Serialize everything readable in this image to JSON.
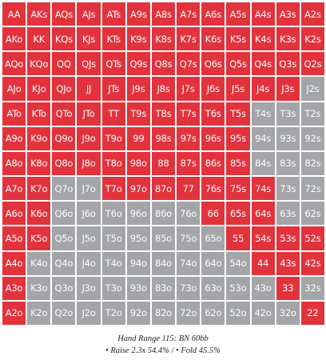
{
  "colors": {
    "raise": "#e2333d",
    "fold": "#a3a5a8",
    "label": "#ffffff"
  },
  "caption": {
    "title": "Hand Range 115: BN 60bb",
    "subtitle": "• Raise 2.3x 54.4% / • Fold 45.5%"
  },
  "grid": {
    "rows": [
      {
        "cells": [
          {
            "label": "AA",
            "action": "raise"
          },
          {
            "label": "AKs",
            "action": "raise"
          },
          {
            "label": "AQs",
            "action": "raise"
          },
          {
            "label": "AJs",
            "action": "raise"
          },
          {
            "label": "ATs",
            "action": "raise"
          },
          {
            "label": "A9s",
            "action": "raise"
          },
          {
            "label": "A8s",
            "action": "raise"
          },
          {
            "label": "A7s",
            "action": "raise"
          },
          {
            "label": "A6s",
            "action": "raise"
          },
          {
            "label": "A5s",
            "action": "raise"
          },
          {
            "label": "A4s",
            "action": "raise"
          },
          {
            "label": "A3s",
            "action": "raise"
          },
          {
            "label": "A2s",
            "action": "raise"
          }
        ]
      },
      {
        "cells": [
          {
            "label": "AKo",
            "action": "raise"
          },
          {
            "label": "KK",
            "action": "raise"
          },
          {
            "label": "KQs",
            "action": "raise"
          },
          {
            "label": "KJs",
            "action": "raise"
          },
          {
            "label": "KTs",
            "action": "raise"
          },
          {
            "label": "K9s",
            "action": "raise"
          },
          {
            "label": "K8s",
            "action": "raise"
          },
          {
            "label": "K7s",
            "action": "raise"
          },
          {
            "label": "K6s",
            "action": "raise"
          },
          {
            "label": "K5s",
            "action": "raise"
          },
          {
            "label": "K4s",
            "action": "raise"
          },
          {
            "label": "K3s",
            "action": "raise"
          },
          {
            "label": "K2s",
            "action": "raise"
          }
        ]
      },
      {
        "cells": [
          {
            "label": "AQo",
            "action": "raise"
          },
          {
            "label": "KQo",
            "action": "raise"
          },
          {
            "label": "QQ",
            "action": "raise"
          },
          {
            "label": "QJs",
            "action": "raise"
          },
          {
            "label": "QTs",
            "action": "raise"
          },
          {
            "label": "Q9s",
            "action": "raise"
          },
          {
            "label": "Q8s",
            "action": "raise"
          },
          {
            "label": "Q7s",
            "action": "raise"
          },
          {
            "label": "Q6s",
            "action": "raise"
          },
          {
            "label": "Q5s",
            "action": "raise"
          },
          {
            "label": "Q4s",
            "action": "raise"
          },
          {
            "label": "Q3s",
            "action": "raise"
          },
          {
            "label": "Q2s",
            "action": "raise"
          }
        ]
      },
      {
        "cells": [
          {
            "label": "AJo",
            "action": "raise"
          },
          {
            "label": "KJo",
            "action": "raise"
          },
          {
            "label": "QJo",
            "action": "raise"
          },
          {
            "label": "JJ",
            "action": "raise"
          },
          {
            "label": "JTs",
            "action": "raise"
          },
          {
            "label": "J9s",
            "action": "raise"
          },
          {
            "label": "J8s",
            "action": "raise"
          },
          {
            "label": "J7s",
            "action": "raise"
          },
          {
            "label": "J6s",
            "action": "raise"
          },
          {
            "label": "J5s",
            "action": "raise"
          },
          {
            "label": "J4s",
            "action": "raise"
          },
          {
            "label": "J3s",
            "action": "raise"
          },
          {
            "label": "J2s",
            "action": "fold"
          }
        ]
      },
      {
        "cells": [
          {
            "label": "ATo",
            "action": "raise"
          },
          {
            "label": "KTo",
            "action": "raise"
          },
          {
            "label": "QTo",
            "action": "raise"
          },
          {
            "label": "JTo",
            "action": "raise"
          },
          {
            "label": "TT",
            "action": "raise"
          },
          {
            "label": "T9s",
            "action": "raise"
          },
          {
            "label": "T8s",
            "action": "raise"
          },
          {
            "label": "T7s",
            "action": "raise"
          },
          {
            "label": "T6s",
            "action": "raise"
          },
          {
            "label": "T5s",
            "action": "raise"
          },
          {
            "label": "T4s",
            "action": "fold"
          },
          {
            "label": "T3s",
            "action": "fold"
          },
          {
            "label": "T2s",
            "action": "fold"
          }
        ]
      },
      {
        "cells": [
          {
            "label": "A9o",
            "action": "raise"
          },
          {
            "label": "K9o",
            "action": "raise"
          },
          {
            "label": "Q9o",
            "action": "raise"
          },
          {
            "label": "J9o",
            "action": "raise"
          },
          {
            "label": "T9o",
            "action": "raise"
          },
          {
            "label": "99",
            "action": "raise"
          },
          {
            "label": "98s",
            "action": "raise"
          },
          {
            "label": "97s",
            "action": "raise"
          },
          {
            "label": "96s",
            "action": "raise"
          },
          {
            "label": "95s",
            "action": "raise"
          },
          {
            "label": "94s",
            "action": "fold"
          },
          {
            "label": "93s",
            "action": "fold"
          },
          {
            "label": "92s",
            "action": "fold"
          }
        ]
      },
      {
        "cells": [
          {
            "label": "A8o",
            "action": "raise"
          },
          {
            "label": "K8o",
            "action": "raise"
          },
          {
            "label": "Q8o",
            "action": "raise"
          },
          {
            "label": "J8o",
            "action": "raise"
          },
          {
            "label": "T8o",
            "action": "raise"
          },
          {
            "label": "98o",
            "action": "raise"
          },
          {
            "label": "88",
            "action": "raise"
          },
          {
            "label": "87s",
            "action": "raise"
          },
          {
            "label": "86s",
            "action": "raise"
          },
          {
            "label": "85s",
            "action": "raise"
          },
          {
            "label": "84s",
            "action": "fold"
          },
          {
            "label": "83s",
            "action": "fold"
          },
          {
            "label": "82s",
            "action": "fold"
          }
        ]
      },
      {
        "cells": [
          {
            "label": "A7o",
            "action": "raise"
          },
          {
            "label": "K7o",
            "action": "raise"
          },
          {
            "label": "Q7o",
            "action": "fold"
          },
          {
            "label": "J7o",
            "action": "fold"
          },
          {
            "label": "T7o",
            "action": "raise"
          },
          {
            "label": "97o",
            "action": "raise"
          },
          {
            "label": "87o",
            "action": "raise"
          },
          {
            "label": "77",
            "action": "raise"
          },
          {
            "label": "76s",
            "action": "raise"
          },
          {
            "label": "75s",
            "action": "raise"
          },
          {
            "label": "74s",
            "action": "raise"
          },
          {
            "label": "73s",
            "action": "fold"
          },
          {
            "label": "72s",
            "action": "fold"
          }
        ]
      },
      {
        "cells": [
          {
            "label": "A6o",
            "action": "raise"
          },
          {
            "label": "K6o",
            "action": "raise"
          },
          {
            "label": "Q6o",
            "action": "fold"
          },
          {
            "label": "J6o",
            "action": "fold"
          },
          {
            "label": "T6o",
            "action": "fold"
          },
          {
            "label": "96o",
            "action": "fold"
          },
          {
            "label": "86o",
            "action": "fold"
          },
          {
            "label": "76o",
            "action": "fold"
          },
          {
            "label": "66",
            "action": "raise"
          },
          {
            "label": "65s",
            "action": "raise"
          },
          {
            "label": "64s",
            "action": "raise"
          },
          {
            "label": "63s",
            "action": "fold"
          },
          {
            "label": "62s",
            "action": "fold"
          }
        ]
      },
      {
        "cells": [
          {
            "label": "A5o",
            "action": "raise"
          },
          {
            "label": "K5o",
            "action": "raise"
          },
          {
            "label": "Q5o",
            "action": "fold"
          },
          {
            "label": "J5o",
            "action": "fold"
          },
          {
            "label": "T5o",
            "action": "fold"
          },
          {
            "label": "95o",
            "action": "fold"
          },
          {
            "label": "85o",
            "action": "fold"
          },
          {
            "label": "75o",
            "action": "fold"
          },
          {
            "label": "65o",
            "action": "fold"
          },
          {
            "label": "55",
            "action": "raise"
          },
          {
            "label": "54s",
            "action": "raise"
          },
          {
            "label": "53s",
            "action": "raise"
          },
          {
            "label": "52s",
            "action": "raise"
          }
        ]
      },
      {
        "cells": [
          {
            "label": "A4o",
            "action": "raise"
          },
          {
            "label": "K4o",
            "action": "fold"
          },
          {
            "label": "Q4o",
            "action": "fold"
          },
          {
            "label": "J4o",
            "action": "fold"
          },
          {
            "label": "T4o",
            "action": "fold"
          },
          {
            "label": "94o",
            "action": "fold"
          },
          {
            "label": "84o",
            "action": "fold"
          },
          {
            "label": "74o",
            "action": "fold"
          },
          {
            "label": "64o",
            "action": "fold"
          },
          {
            "label": "54o",
            "action": "fold"
          },
          {
            "label": "44",
            "action": "raise"
          },
          {
            "label": "43s",
            "action": "raise"
          },
          {
            "label": "42s",
            "action": "raise"
          }
        ]
      },
      {
        "cells": [
          {
            "label": "A3o",
            "action": "raise"
          },
          {
            "label": "K3o",
            "action": "fold"
          },
          {
            "label": "Q3o",
            "action": "fold"
          },
          {
            "label": "J3o",
            "action": "fold"
          },
          {
            "label": "T3o",
            "action": "fold"
          },
          {
            "label": "93o",
            "action": "fold"
          },
          {
            "label": "83o",
            "action": "fold"
          },
          {
            "label": "73o",
            "action": "fold"
          },
          {
            "label": "63o",
            "action": "fold"
          },
          {
            "label": "53o",
            "action": "fold"
          },
          {
            "label": "43o",
            "action": "fold"
          },
          {
            "label": "33",
            "action": "raise"
          },
          {
            "label": "32s",
            "action": "fold"
          }
        ]
      },
      {
        "cells": [
          {
            "label": "A2o",
            "action": "raise"
          },
          {
            "label": "K2o",
            "action": "fold"
          },
          {
            "label": "Q2o",
            "action": "fold"
          },
          {
            "label": "J2o",
            "action": "fold"
          },
          {
            "label": "T2o",
            "action": "fold"
          },
          {
            "label": "92o",
            "action": "fold"
          },
          {
            "label": "82o",
            "action": "fold"
          },
          {
            "label": "72o",
            "action": "fold"
          },
          {
            "label": "62o",
            "action": "fold"
          },
          {
            "label": "52o",
            "action": "fold"
          },
          {
            "label": "42o",
            "action": "fold"
          },
          {
            "label": "32o",
            "action": "fold"
          },
          {
            "label": "22",
            "action": "raise"
          }
        ]
      }
    ]
  }
}
